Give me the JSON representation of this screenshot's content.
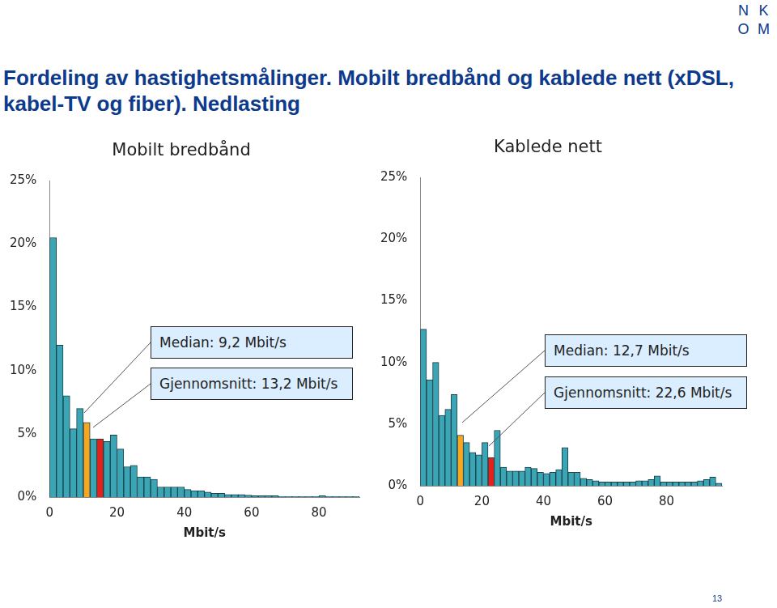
{
  "page": {
    "title": "Fordeling av hastighetsmålinger. Mobilt bredbånd og kablede nett (xDSL, kabel-TV og fiber). Nedlasting",
    "logo": [
      "N",
      "K",
      "O",
      "M"
    ],
    "page_number": 13
  },
  "chart_data": [
    {
      "type": "bar",
      "title": "Mobilt bredbånd",
      "x_label": "Mbit/s",
      "bins": [
        0,
        2,
        4,
        6,
        8,
        10,
        12,
        14,
        16,
        18,
        20,
        22,
        24,
        26,
        28,
        30,
        32,
        34,
        36,
        38,
        40,
        42,
        44,
        46,
        48,
        50,
        52,
        54,
        56,
        58,
        60,
        62,
        64,
        66,
        68,
        70,
        72,
        74,
        76,
        78,
        80,
        82,
        84,
        86,
        88,
        90,
        92
      ],
      "values": [
        20.5,
        12.0,
        8.0,
        5.4,
        7.0,
        5.9,
        4.6,
        4.6,
        4.4,
        4.9,
        3.8,
        2.4,
        2.5,
        1.6,
        1.6,
        1.4,
        0.8,
        0.8,
        0.8,
        0.8,
        0.6,
        0.5,
        0.5,
        0.4,
        0.3,
        0.3,
        0.2,
        0.2,
        0.2,
        0.15,
        0.1,
        0.1,
        0.1,
        0.1,
        0.05,
        0.05,
        0.05,
        0.05,
        0.05,
        0.05,
        0.1,
        0.05,
        0.05,
        0.05,
        0.05,
        0.05
      ],
      "colors": [
        "#3aa5b5",
        "#3aa5b5",
        "#3aa5b5",
        "#3aa5b5",
        "#3aa5b5",
        "#f5a623",
        "#3aa5b5",
        "#e3221b",
        "#3aa5b5",
        "#3aa5b5",
        "#3aa5b5",
        "#3aa5b5",
        "#3aa5b5",
        "#3aa5b5",
        "#3aa5b5",
        "#3aa5b5",
        "#3aa5b5",
        "#3aa5b5",
        "#3aa5b5",
        "#3aa5b5",
        "#3aa5b5",
        "#3aa5b5",
        "#3aa5b5",
        "#3aa5b5",
        "#3aa5b5",
        "#3aa5b5",
        "#3aa5b5",
        "#3aa5b5",
        "#3aa5b5",
        "#3aa5b5",
        "#3aa5b5",
        "#3aa5b5",
        "#3aa5b5",
        "#3aa5b5",
        "#3aa5b5",
        "#3aa5b5",
        "#3aa5b5",
        "#3aa5b5",
        "#3aa5b5",
        "#3aa5b5",
        "#3aa5b5",
        "#3aa5b5",
        "#3aa5b5",
        "#3aa5b5",
        "#3aa5b5",
        "#3aa5b5"
      ],
      "xlim": [
        0,
        92
      ],
      "xticks": [
        0,
        20,
        40,
        60,
        80
      ],
      "ylim": [
        0,
        25
      ],
      "yticks": [
        {
          "value": 0,
          "label": "0%"
        },
        {
          "value": 5,
          "label": "5%"
        },
        {
          "value": 10,
          "label": "10%"
        },
        {
          "value": 15,
          "label": "15%"
        },
        {
          "value": 20,
          "label": "20%"
        },
        {
          "value": 25,
          "label": "25%"
        }
      ],
      "grid": false,
      "annotations": [
        {
          "text": "Median: 9,2 Mbit/s"
        },
        {
          "text": "Gjennomsnitt: 13,2 Mbit/s"
        }
      ]
    },
    {
      "type": "bar",
      "title": "Kablede nett",
      "x_label": "Mbit/s",
      "bins": [
        0,
        2,
        4,
        6,
        8,
        10,
        12,
        14,
        16,
        18,
        20,
        22,
        24,
        26,
        28,
        30,
        32,
        34,
        36,
        38,
        40,
        42,
        44,
        46,
        48,
        50,
        52,
        54,
        56,
        58,
        60,
        62,
        64,
        66,
        68,
        70,
        72,
        74,
        76,
        78,
        80,
        82,
        84,
        86,
        88,
        90,
        92,
        94,
        96,
        98
      ],
      "values": [
        12.7,
        8.6,
        10.0,
        5.7,
        6.2,
        7.4,
        4.1,
        3.5,
        2.7,
        2.5,
        3.5,
        2.3,
        4.5,
        1.5,
        1.2,
        1.2,
        1.2,
        1.5,
        1.4,
        1.1,
        1.0,
        1.1,
        1.3,
        3.1,
        1.1,
        1.1,
        0.6,
        0.5,
        0.4,
        0.3,
        0.3,
        0.3,
        0.3,
        0.3,
        0.3,
        0.4,
        0.4,
        0.5,
        0.8,
        0.3,
        0.3,
        0.3,
        0.3,
        0.3,
        0.3,
        0.4,
        0.5,
        0.7,
        0.2
      ],
      "colors": [
        "#3aa5b5",
        "#3aa5b5",
        "#3aa5b5",
        "#3aa5b5",
        "#3aa5b5",
        "#3aa5b5",
        "#f5a623",
        "#3aa5b5",
        "#3aa5b5",
        "#3aa5b5",
        "#3aa5b5",
        "#e3221b",
        "#3aa5b5",
        "#3aa5b5",
        "#3aa5b5",
        "#3aa5b5",
        "#3aa5b5",
        "#3aa5b5",
        "#3aa5b5",
        "#3aa5b5",
        "#3aa5b5",
        "#3aa5b5",
        "#3aa5b5",
        "#3aa5b5",
        "#3aa5b5",
        "#3aa5b5",
        "#3aa5b5",
        "#3aa5b5",
        "#3aa5b5",
        "#3aa5b5",
        "#3aa5b5",
        "#3aa5b5",
        "#3aa5b5",
        "#3aa5b5",
        "#3aa5b5",
        "#3aa5b5",
        "#3aa5b5",
        "#3aa5b5",
        "#3aa5b5",
        "#3aa5b5",
        "#3aa5b5",
        "#3aa5b5",
        "#3aa5b5",
        "#3aa5b5",
        "#3aa5b5",
        "#3aa5b5",
        "#3aa5b5",
        "#3aa5b5",
        "#3aa5b5"
      ],
      "xlim": [
        0,
        98
      ],
      "xticks": [
        0,
        20,
        40,
        60,
        80
      ],
      "ylim": [
        0,
        25
      ],
      "yticks": [
        {
          "value": 0,
          "label": "0%"
        },
        {
          "value": 5,
          "label": "5%"
        },
        {
          "value": 10,
          "label": "10%"
        },
        {
          "value": 15,
          "label": "15%"
        },
        {
          "value": 20,
          "label": "20%"
        },
        {
          "value": 25,
          "label": "25%"
        }
      ],
      "grid": false,
      "annotations": [
        {
          "text": "Median: 12,7 Mbit/s"
        },
        {
          "text": "Gjennomsnitt: 22,6 Mbit/s"
        }
      ]
    }
  ]
}
